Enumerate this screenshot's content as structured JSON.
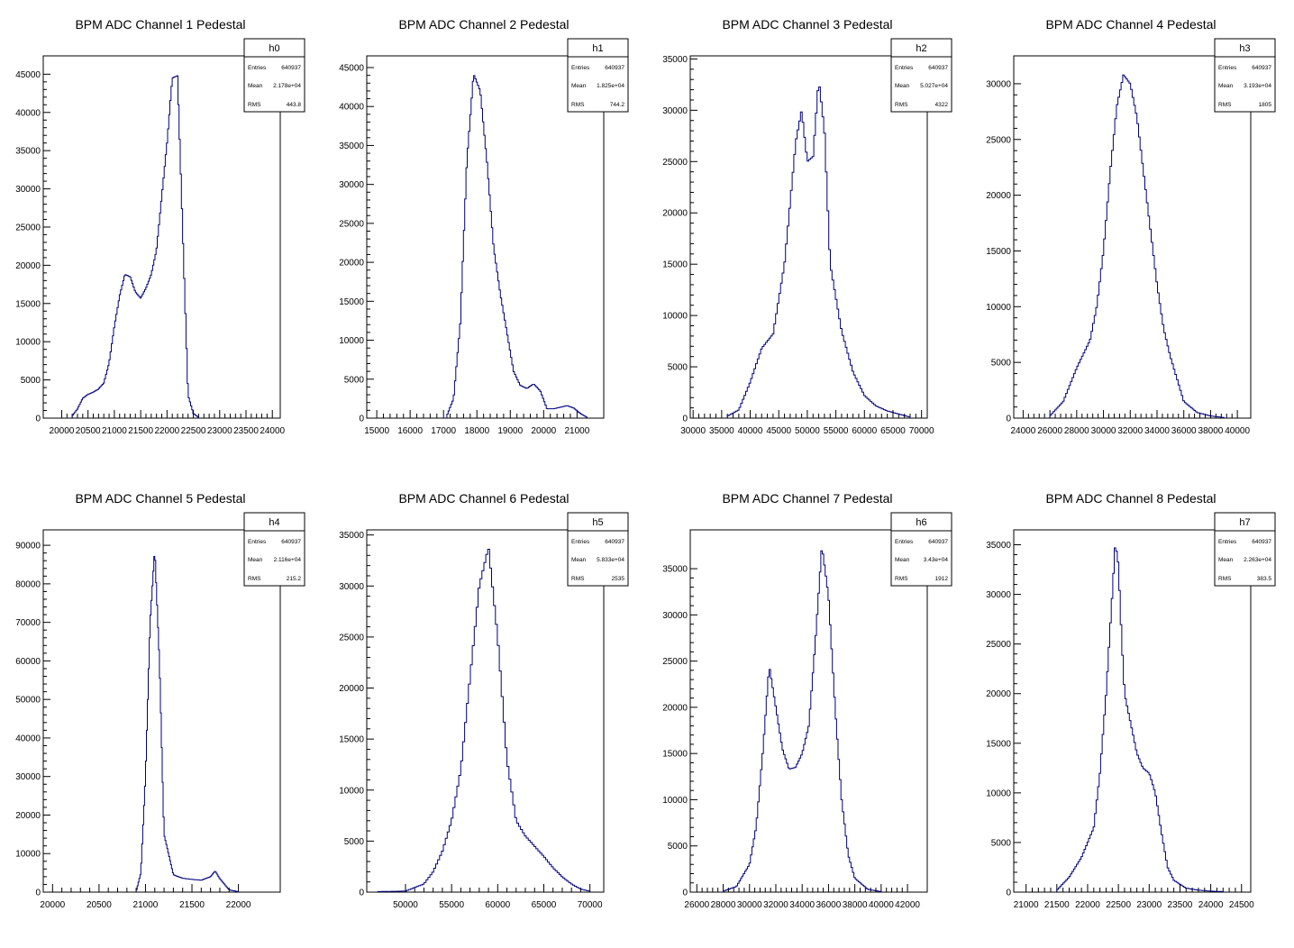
{
  "canvas_title": "",
  "colors": {
    "histogram": "#00007f",
    "axis": "#000000",
    "background": "#ffffff"
  },
  "stat_labels": {
    "entries": "Entries",
    "mean": "Mean",
    "rms": "RMS"
  },
  "chart_data": [
    {
      "type": "bar",
      "style": "step-histogram",
      "title": "BPM ADC Channel 1 Pedestal",
      "stats": {
        "name": "h0",
        "entries": "640937",
        "mean": "2.178e+04",
        "rms": "443.8"
      },
      "xlim": [
        19650,
        24150
      ],
      "ylim": [
        0,
        47400
      ],
      "xticks": [
        "20000",
        "20500",
        "21000",
        "21500",
        "22000",
        "22500",
        "23000",
        "23500",
        "24000"
      ],
      "yticks": [
        "0",
        "5000",
        "10000",
        "15000",
        "20000",
        "25000",
        "30000",
        "35000",
        "40000",
        "45000"
      ],
      "x": [
        20200,
        20300,
        20400,
        20500,
        20600,
        20700,
        20800,
        20900,
        21000,
        21100,
        21200,
        21300,
        21400,
        21500,
        21600,
        21700,
        21800,
        21900,
        22000,
        22100,
        22200,
        22300,
        22400,
        22500,
        22600
      ],
      "values": [
        300,
        1200,
        2600,
        3100,
        3400,
        3800,
        4600,
        7200,
        12000,
        16000,
        18800,
        18500,
        16500,
        15700,
        17000,
        18800,
        22000,
        29000,
        36000,
        44500,
        44800,
        24000,
        3000,
        600,
        100
      ]
    },
    {
      "type": "bar",
      "style": "step-histogram",
      "title": "BPM ADC Channel 2 Pedestal",
      "stats": {
        "name": "h1",
        "entries": "640937",
        "mean": "1.825e+04",
        "rms": "744.2"
      },
      "xlim": [
        14700,
        21800
      ],
      "ylim": [
        0,
        46500
      ],
      "xticks": [
        "15000",
        "16000",
        "17000",
        "18000",
        "19000",
        "20000",
        "21000"
      ],
      "yticks": [
        "0",
        "5000",
        "10000",
        "15000",
        "20000",
        "25000",
        "30000",
        "35000",
        "40000",
        "45000"
      ],
      "x": [
        17100,
        17300,
        17500,
        17700,
        17900,
        18100,
        18300,
        18500,
        18700,
        18900,
        19100,
        19300,
        19500,
        19700,
        19900,
        20100,
        20300,
        20500,
        20700,
        20900,
        21100,
        21300
      ],
      "values": [
        300,
        2500,
        12000,
        33000,
        44200,
        42000,
        33000,
        22000,
        16000,
        11000,
        6000,
        4200,
        3800,
        4400,
        3500,
        1200,
        1200,
        1400,
        1600,
        1300,
        600,
        100
      ]
    },
    {
      "type": "bar",
      "style": "step-histogram",
      "title": "BPM ADC Channel 3 Pedestal",
      "stats": {
        "name": "h2",
        "entries": "640937",
        "mean": "5.027e+04",
        "rms": "4322"
      },
      "xlim": [
        29500,
        71000
      ],
      "ylim": [
        0,
        35300
      ],
      "xticks": [
        "30000",
        "35000",
        "40000",
        "45000",
        "50000",
        "55000",
        "60000",
        "65000",
        "70000"
      ],
      "yticks": [
        "0",
        "5000",
        "10000",
        "15000",
        "20000",
        "25000",
        "30000",
        "35000"
      ],
      "x": [
        36000,
        38000,
        40000,
        42000,
        44000,
        46000,
        48000,
        49000,
        50000,
        51000,
        52000,
        53000,
        54000,
        56000,
        58000,
        60000,
        62000,
        64000,
        66000,
        68000
      ],
      "values": [
        200,
        800,
        3500,
        6800,
        8200,
        15000,
        27000,
        30000,
        25000,
        25500,
        33000,
        28000,
        15000,
        8500,
        4500,
        2200,
        1200,
        700,
        400,
        100
      ]
    },
    {
      "type": "bar",
      "style": "step-histogram",
      "title": "BPM ADC Channel 4 Pedestal",
      "stats": {
        "name": "h3",
        "entries": "640937",
        "mean": "3.193e+04",
        "rms": "1805"
      },
      "xlim": [
        23300,
        41000
      ],
      "ylim": [
        0,
        32500
      ],
      "xticks": [
        "24000",
        "26000",
        "28000",
        "30000",
        "32000",
        "34000",
        "36000",
        "38000",
        "40000"
      ],
      "yticks": [
        "0",
        "5000",
        "10000",
        "15000",
        "20000",
        "25000",
        "30000"
      ],
      "x": [
        26000,
        27000,
        28000,
        29000,
        29500,
        30000,
        30500,
        31000,
        31500,
        32000,
        32500,
        33000,
        33500,
        34000,
        34500,
        35000,
        36000,
        37000,
        38000,
        39000
      ],
      "values": [
        200,
        1500,
        4500,
        7000,
        10000,
        15000,
        22000,
        28000,
        30800,
        30000,
        27000,
        22000,
        17000,
        12000,
        8000,
        5500,
        1500,
        500,
        200,
        50
      ]
    },
    {
      "type": "bar",
      "style": "step-histogram",
      "title": "BPM ADC Channel 5 Pedestal",
      "stats": {
        "name": "h4",
        "entries": "640937",
        "mean": "2.116e+04",
        "rms": "215.2"
      },
      "xlim": [
        19900,
        22450
      ],
      "ylim": [
        0,
        94000
      ],
      "xticks": [
        "20000",
        "20500",
        "21000",
        "21500",
        "22000"
      ],
      "yticks": [
        "0",
        "10000",
        "20000",
        "30000",
        "40000",
        "50000",
        "60000",
        "70000",
        "80000",
        "90000"
      ],
      "x": [
        20900,
        20950,
        21000,
        21050,
        21100,
        21150,
        21200,
        21300,
        21400,
        21500,
        21600,
        21700,
        21750,
        21800,
        21900,
        22000
      ],
      "values": [
        200,
        5000,
        30000,
        70000,
        89000,
        60000,
        15000,
        4500,
        3600,
        3300,
        3100,
        4000,
        5500,
        3500,
        600,
        100
      ]
    },
    {
      "type": "bar",
      "style": "step-histogram",
      "title": "BPM ADC Channel 6 Pedestal",
      "stats": {
        "name": "h5",
        "entries": "640937",
        "mean": "5.833e+04",
        "rms": "2535"
      },
      "xlim": [
        45800,
        71500
      ],
      "ylim": [
        0,
        35500
      ],
      "xticks": [
        "50000",
        "55000",
        "60000",
        "65000",
        "70000"
      ],
      "yticks": [
        "0",
        "5000",
        "10000",
        "15000",
        "20000",
        "25000",
        "30000",
        "35000"
      ],
      "x": [
        47000,
        50000,
        52000,
        53000,
        54000,
        55000,
        56000,
        57000,
        58000,
        59000,
        60000,
        61000,
        62000,
        63000,
        64000,
        65000,
        66000,
        67000,
        68000,
        69000,
        70000
      ],
      "values": [
        50,
        100,
        800,
        2000,
        4000,
        7000,
        12000,
        21000,
        30000,
        33800,
        25000,
        13000,
        7000,
        5500,
        4500,
        3500,
        2400,
        1500,
        800,
        300,
        100
      ]
    },
    {
      "type": "bar",
      "style": "step-histogram",
      "title": "BPM ADC Channel 7 Pedestal",
      "stats": {
        "name": "h6",
        "entries": "640937",
        "mean": "3.43e+04",
        "rms": "1912"
      },
      "xlim": [
        25500,
        43500
      ],
      "ylim": [
        0,
        39200
      ],
      "xticks": [
        "26000",
        "28000",
        "30000",
        "32000",
        "34000",
        "36000",
        "38000",
        "40000",
        "42000"
      ],
      "yticks": [
        "0",
        "5000",
        "10000",
        "15000",
        "20000",
        "25000",
        "30000",
        "35000"
      ],
      "x": [
        28000,
        29000,
        30000,
        30500,
        31000,
        31500,
        32000,
        32500,
        33000,
        33500,
        34000,
        34500,
        35000,
        35500,
        36000,
        36500,
        37000,
        37500,
        38000,
        39000,
        40000
      ],
      "values": [
        100,
        600,
        3000,
        7000,
        15000,
        24500,
        20000,
        15500,
        13300,
        13500,
        15000,
        18000,
        27000,
        37500,
        32000,
        20000,
        10000,
        4000,
        1500,
        300,
        50
      ]
    },
    {
      "type": "bar",
      "style": "step-histogram",
      "title": "BPM ADC Channel 8 Pedestal",
      "stats": {
        "name": "h7",
        "entries": "640937",
        "mean": "2.263e+04",
        "rms": "383.5"
      },
      "xlim": [
        20800,
        24650
      ],
      "ylim": [
        0,
        36500
      ],
      "xticks": [
        "21000",
        "21500",
        "22000",
        "22500",
        "23000",
        "23500",
        "24000",
        "24500"
      ],
      "yticks": [
        "0",
        "5000",
        "10000",
        "15000",
        "20000",
        "25000",
        "30000",
        "35000"
      ],
      "x": [
        21500,
        21700,
        21900,
        22100,
        22200,
        22300,
        22400,
        22450,
        22500,
        22550,
        22600,
        22700,
        22800,
        22900,
        23000,
        23100,
        23200,
        23300,
        23400,
        23600,
        23800,
        24000,
        24200
      ],
      "values": [
        200,
        1500,
        3500,
        6500,
        12000,
        20000,
        30000,
        35200,
        33000,
        26000,
        20000,
        17000,
        14000,
        12500,
        12000,
        10000,
        6000,
        2500,
        1200,
        400,
        200,
        100,
        50
      ]
    }
  ]
}
